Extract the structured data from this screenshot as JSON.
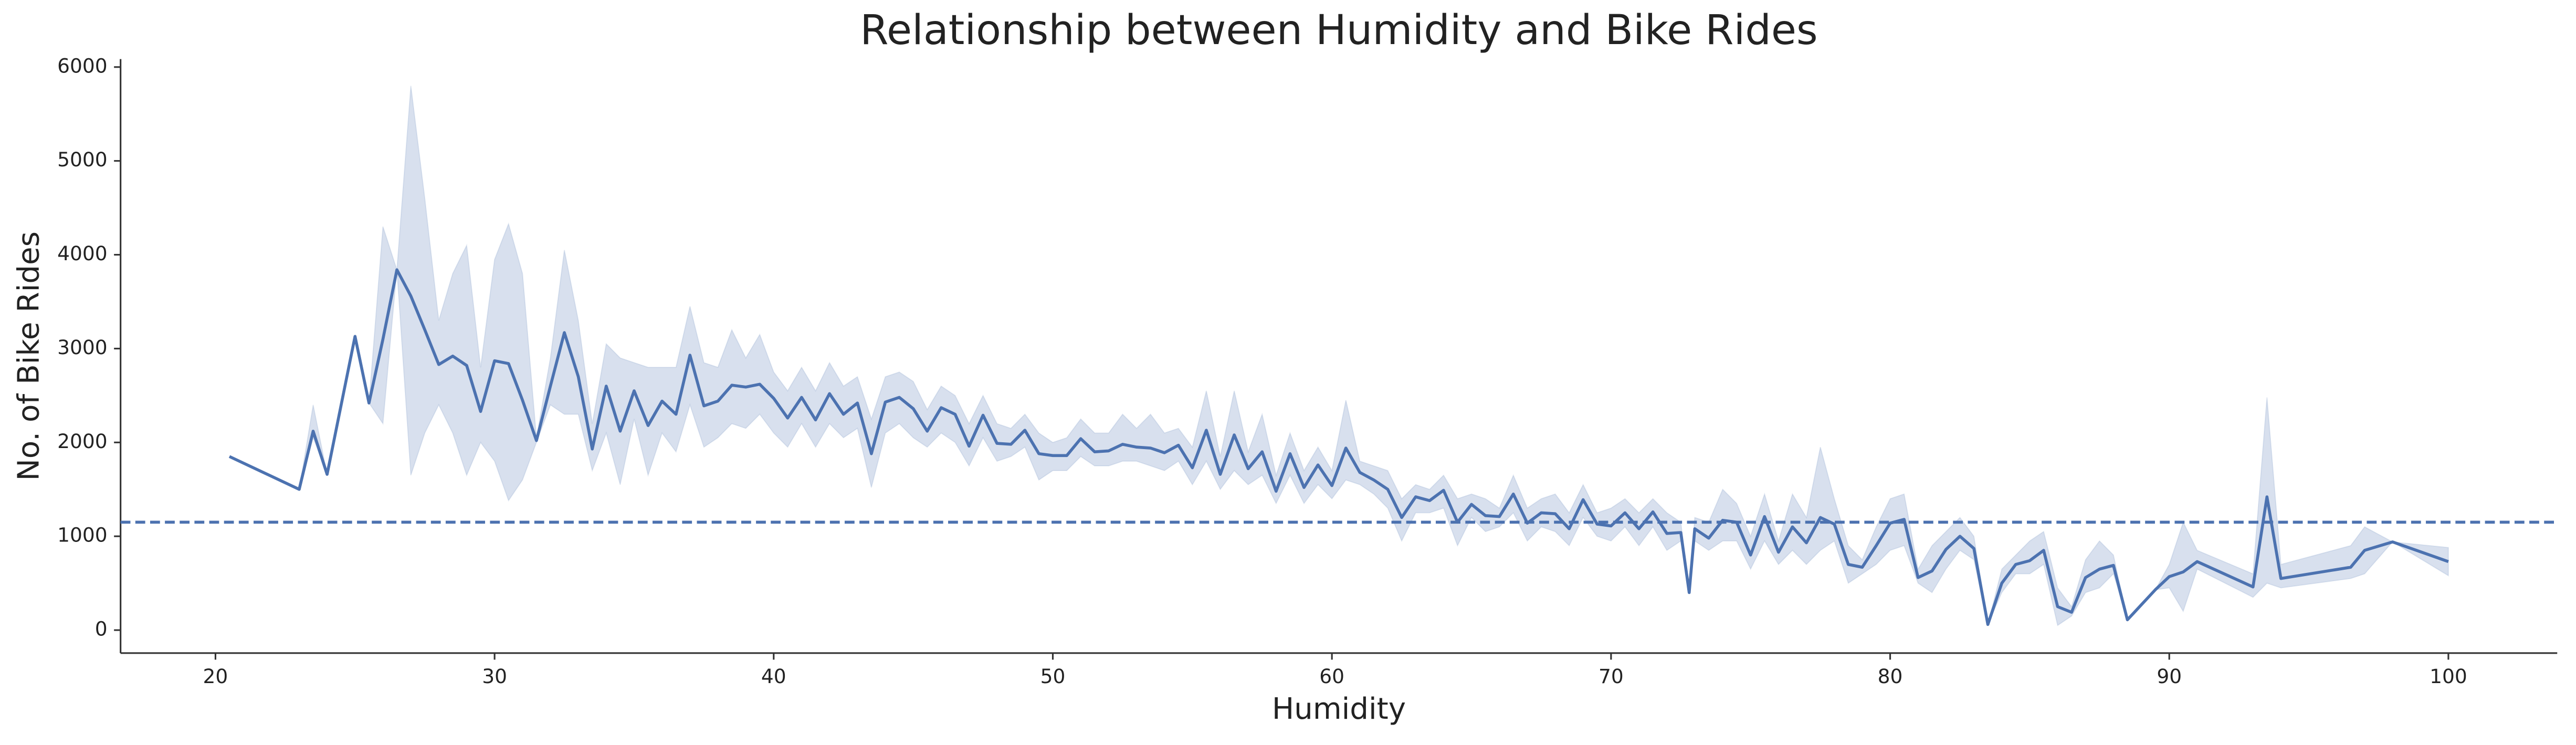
{
  "chart_data": {
    "type": "line",
    "title": "Relationship between Humidity and Bike Rides",
    "x_label": "Humidity",
    "y_label": "No. of Bike Rides",
    "color": "#4c72b0",
    "xlim": [
      16.6,
      103.9
    ],
    "ylim": [
      -245,
      6085
    ],
    "xticks": [
      20,
      30,
      40,
      50,
      60,
      70,
      80,
      90,
      100
    ],
    "yticks": [
      0,
      1000,
      2000,
      3000,
      4000,
      5000,
      6000
    ],
    "hline": 1150,
    "x": [
      20.5,
      23,
      23.5,
      24,
      25,
      25.5,
      26,
      26.5,
      27,
      27.5,
      28,
      28.5,
      29,
      29.5,
      30,
      30.5,
      31,
      31.5,
      32,
      32.5,
      33,
      33.5,
      34,
      34.5,
      35,
      35.5,
      36,
      36.5,
      37,
      37.5,
      38,
      38.5,
      39,
      39.5,
      40,
      40.5,
      41,
      41.5,
      42,
      42.5,
      43,
      43.5,
      44,
      44.5,
      45,
      45.5,
      46,
      46.5,
      47,
      47.5,
      48,
      48.5,
      49,
      49.5,
      50,
      50.5,
      51,
      51.5,
      52,
      52.5,
      53,
      53.5,
      54,
      54.5,
      55,
      55.5,
      56,
      56.5,
      57,
      57.5,
      58,
      58.5,
      59,
      59.5,
      60,
      60.5,
      61,
      61.5,
      62,
      62.5,
      63,
      63.5,
      64,
      64.5,
      65,
      65.5,
      66,
      66.5,
      67,
      67.5,
      68,
      68.5,
      69,
      69.5,
      70,
      70.5,
      71,
      71.5,
      72,
      72.5,
      72.8,
      73,
      73.5,
      74,
      74.5,
      75,
      75.5,
      76,
      76.5,
      77,
      77.5,
      78,
      78.5,
      79,
      79.5,
      80,
      80.5,
      81,
      81.5,
      82,
      82.5,
      83,
      83.5,
      84,
      84.5,
      85,
      85.5,
      86,
      86.5,
      87,
      87.5,
      88,
      88.5,
      89,
      89.5,
      90,
      90.5,
      91,
      93,
      93.5,
      94,
      96.5,
      97,
      98,
      100
    ],
    "values": [
      1850,
      1500,
      2120,
      1660,
      3130,
      2420,
      3100,
      3840,
      3560,
      3200,
      2830,
      2920,
      2820,
      2330,
      2870,
      2840,
      2450,
      2020,
      2600,
      3170,
      2700,
      1930,
      2600,
      2120,
      2550,
      2180,
      2440,
      2300,
      2930,
      2390,
      2440,
      2610,
      2590,
      2620,
      2470,
      2260,
      2480,
      2240,
      2520,
      2300,
      2420,
      1880,
      2430,
      2480,
      2360,
      2120,
      2370,
      2300,
      1960,
      2290,
      1990,
      1980,
      2130,
      1880,
      1860,
      1860,
      2040,
      1900,
      1910,
      1980,
      1950,
      1940,
      1890,
      1970,
      1730,
      2130,
      1660,
      2080,
      1720,
      1900,
      1480,
      1880,
      1520,
      1760,
      1540,
      1940,
      1680,
      1600,
      1500,
      1200,
      1420,
      1380,
      1490,
      1150,
      1340,
      1220,
      1210,
      1450,
      1140,
      1250,
      1240,
      1080,
      1390,
      1130,
      1110,
      1250,
      1080,
      1260,
      1030,
      1040,
      400,
      1080,
      980,
      1170,
      1150,
      800,
      1210,
      830,
      1100,
      930,
      1200,
      1130,
      700,
      670,
      900,
      1140,
      1180,
      560,
      630,
      860,
      1000,
      870,
      60,
      500,
      700,
      740,
      850,
      250,
      190,
      560,
      650,
      690,
      110,
      270,
      430,
      570,
      620,
      730,
      460,
      1420,
      550,
      670,
      850,
      940,
      730
    ],
    "ci_lower": [
      1850,
      1500,
      2050,
      1660,
      3130,
      2420,
      2200,
      3840,
      1650,
      2100,
      2400,
      2100,
      1650,
      2000,
      1800,
      1380,
      1600,
      2000,
      2400,
      2300,
      2300,
      1700,
      2100,
      1550,
      2250,
      1650,
      2100,
      1900,
      2400,
      1950,
      2050,
      2200,
      2150,
      2300,
      2100,
      1950,
      2200,
      1950,
      2200,
      2050,
      2150,
      1520,
      2100,
      2200,
      2050,
      1950,
      2100,
      2000,
      1750,
      2050,
      1800,
      1850,
      1950,
      1600,
      1700,
      1700,
      1850,
      1750,
      1750,
      1800,
      1800,
      1750,
      1700,
      1800,
      1550,
      1800,
      1500,
      1700,
      1550,
      1650,
      1350,
      1650,
      1350,
      1550,
      1400,
      1600,
      1550,
      1450,
      1300,
      950,
      1250,
      1250,
      1300,
      900,
      1200,
      1050,
      1100,
      1250,
      950,
      1100,
      1050,
      900,
      1200,
      1000,
      950,
      1100,
      900,
      1100,
      850,
      950,
      400,
      950,
      850,
      950,
      950,
      650,
      950,
      700,
      850,
      700,
      850,
      950,
      500,
      600,
      700,
      850,
      900,
      500,
      400,
      650,
      850,
      750,
      60,
      400,
      600,
      600,
      700,
      50,
      150,
      400,
      450,
      600,
      110,
      270,
      430,
      450,
      200,
      650,
      350,
      500,
      450,
      550,
      600,
      940,
      580
    ],
    "ci_upper": [
      1850,
      1500,
      2400,
      1660,
      3130,
      2420,
      4300,
      3840,
      5800,
      4600,
      3300,
      3800,
      4100,
      2800,
      3950,
      4330,
      3800,
      2050,
      2900,
      4050,
      3300,
      2200,
      3050,
      2900,
      2850,
      2800,
      2800,
      2800,
      3450,
      2850,
      2800,
      3200,
      2900,
      3150,
      2750,
      2550,
      2800,
      2550,
      2850,
      2600,
      2700,
      2250,
      2700,
      2750,
      2650,
      2350,
      2600,
      2500,
      2200,
      2500,
      2200,
      2150,
      2300,
      2100,
      2000,
      2050,
      2250,
      2100,
      2100,
      2300,
      2150,
      2300,
      2100,
      2150,
      1950,
      2550,
      1850,
      2550,
      1900,
      2300,
      1650,
      2100,
      1700,
      1950,
      1700,
      2450,
      1800,
      1750,
      1700,
      1400,
      1550,
      1500,
      1650,
      1400,
      1450,
      1400,
      1300,
      1650,
      1300,
      1400,
      1450,
      1250,
      1550,
      1250,
      1300,
      1400,
      1250,
      1400,
      1250,
      1150,
      400,
      1200,
      1150,
      1500,
      1350,
      1000,
      1450,
      950,
      1450,
      1200,
      1950,
      1400,
      900,
      750,
      1100,
      1400,
      1450,
      650,
      900,
      1050,
      1200,
      1000,
      60,
      650,
      800,
      950,
      1050,
      450,
      250,
      750,
      950,
      800,
      110,
      270,
      430,
      700,
      1150,
      850,
      600,
      2480,
      700,
      900,
      1100,
      940,
      880
    ]
  }
}
